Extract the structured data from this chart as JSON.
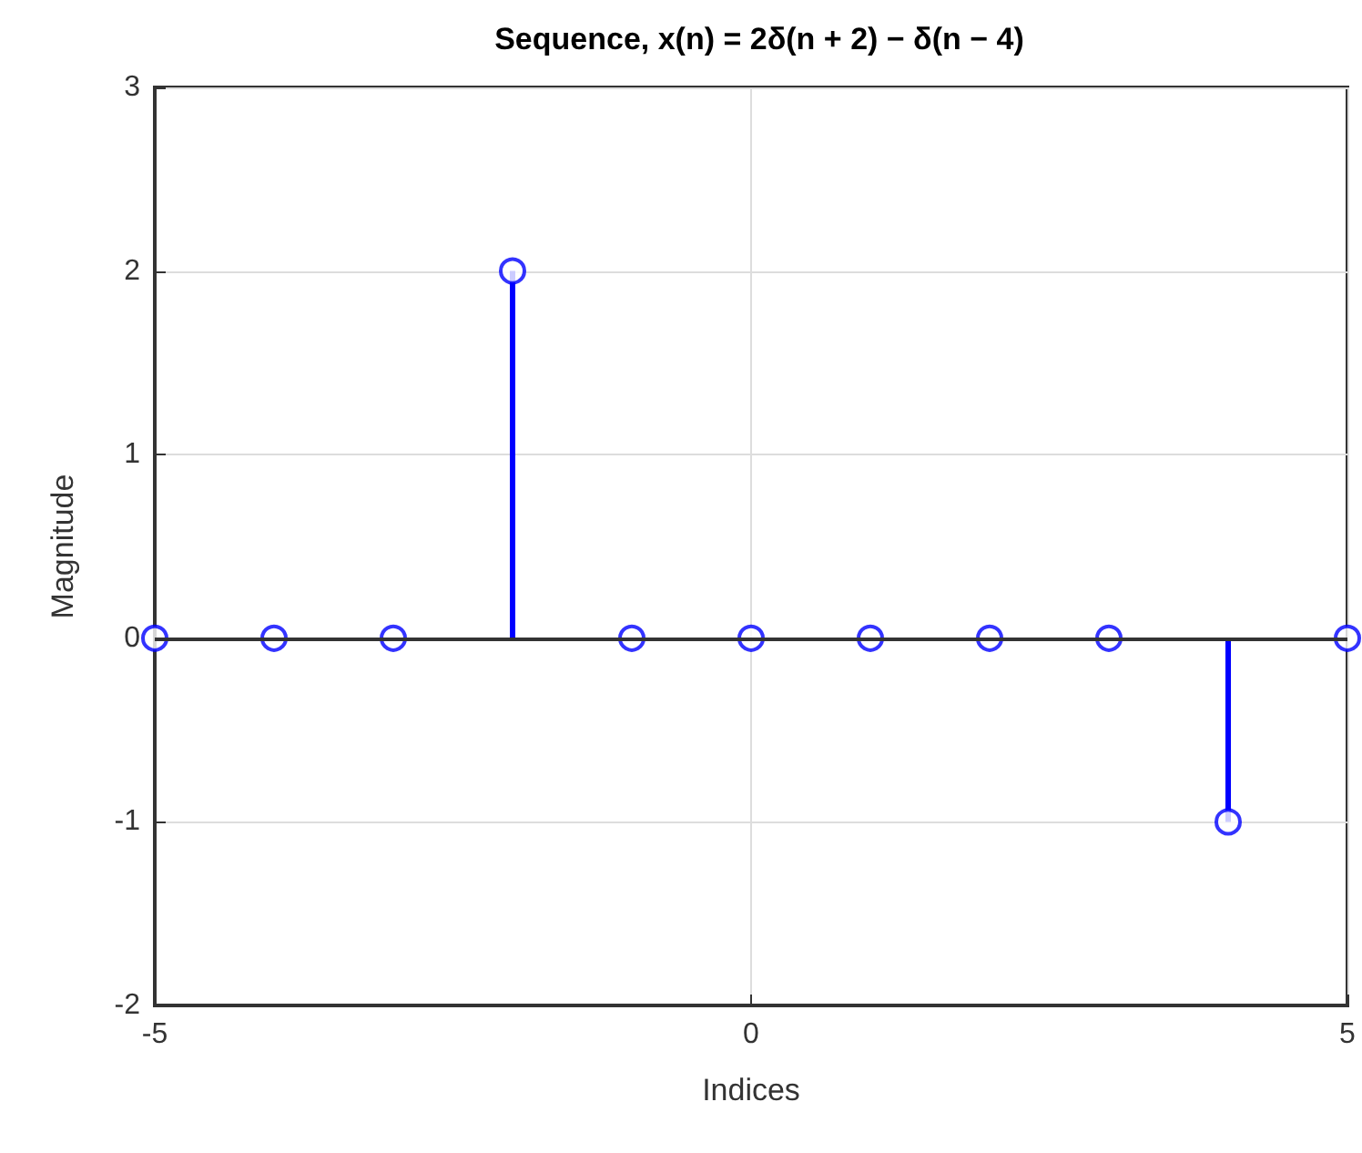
{
  "chart_data": {
    "type": "lollipop",
    "title": "Sequence, x(n) = 2δ(n + 2) − δ(n − 4)",
    "xlabel": "Indices",
    "ylabel": "Magnitude",
    "x": [
      -5,
      -4,
      -3,
      -2,
      -1,
      0,
      1,
      2,
      3,
      4,
      5
    ],
    "series": [
      {
        "color": "#0000ff",
        "values": [
          0,
          0,
          0,
          2,
          0,
          0,
          0,
          0,
          0,
          -1,
          0
        ]
      }
    ],
    "xlim": [
      -5,
      5
    ],
    "xticks": [
      -5,
      0,
      5
    ],
    "ylim": [
      -2,
      3
    ],
    "yticks": [
      -2,
      -1,
      0,
      1,
      2,
      3
    ],
    "grid": true,
    "marker": "circle"
  }
}
